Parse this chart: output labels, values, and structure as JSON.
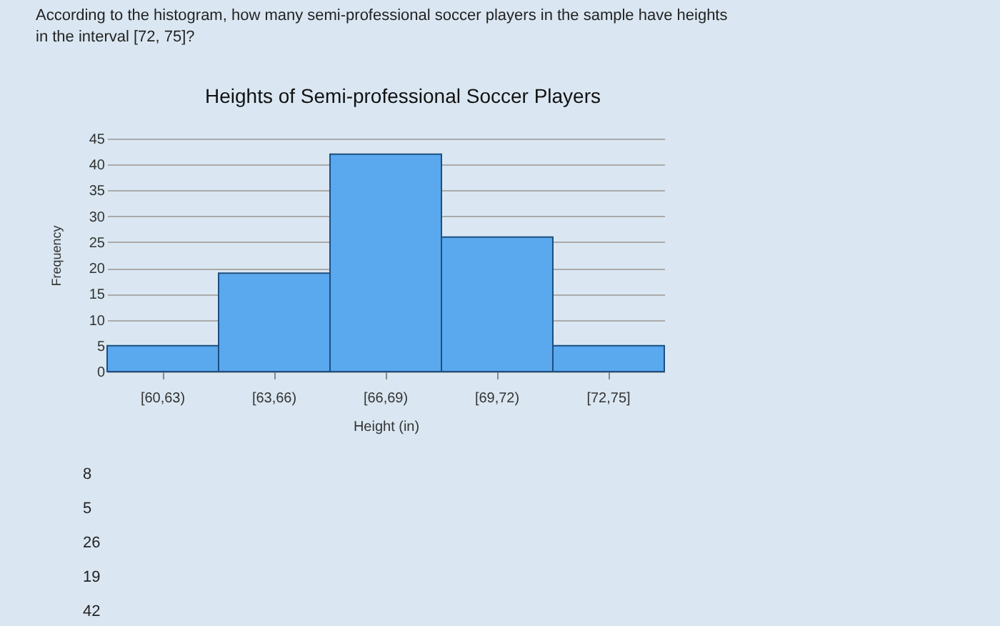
{
  "chart_data": {
    "type": "bar",
    "title": "Heights of Semi-professional Soccer Players",
    "xlabel": "Height (in)",
    "ylabel": "Frequency",
    "categories": [
      "[60,63)",
      "[63,66)",
      "[66,69)",
      "[69,72)",
      "[72,75]"
    ],
    "values": [
      5,
      19,
      42,
      26,
      5
    ],
    "color": "#5aa8ee",
    "ylim": [
      0,
      45
    ],
    "yticks": [
      0,
      5,
      10,
      15,
      20,
      25,
      30,
      35,
      40,
      45
    ],
    "grid": "y",
    "annotations": [
      "According to the histogram, how many semi-professional soccer players in the sample have heights\nin the interval [72, 75]?",
      "8",
      "5",
      "26",
      "19",
      "42"
    ]
  }
}
